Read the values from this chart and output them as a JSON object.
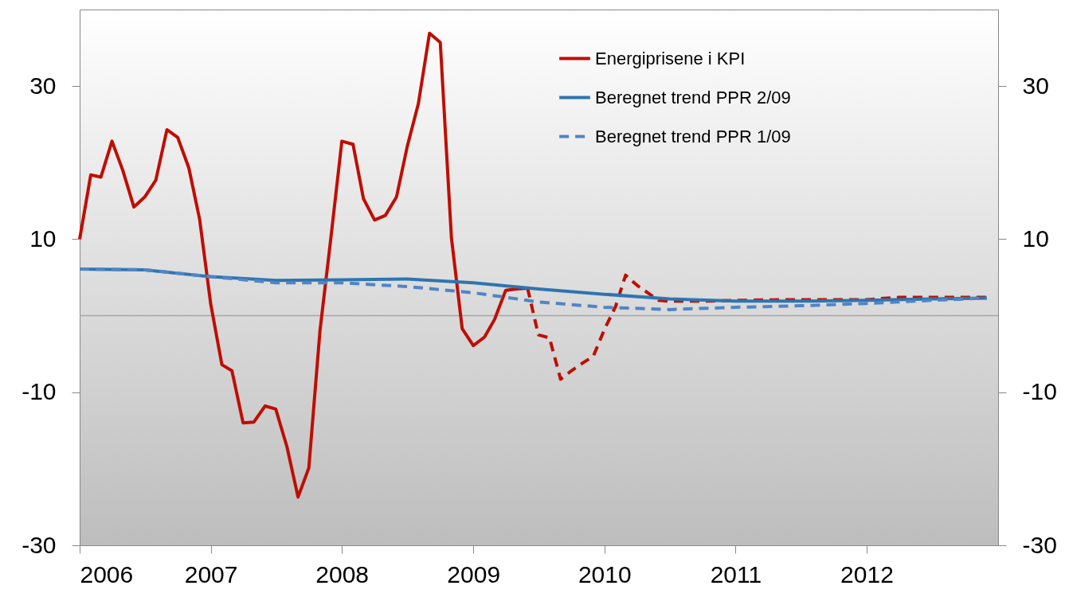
{
  "chart_data": {
    "type": "line",
    "xlim": [
      "2006",
      "2013"
    ],
    "xticks": [
      "2006",
      "2007",
      "2008",
      "2009",
      "2010",
      "2011",
      "2012"
    ],
    "ylim": [
      -30,
      40
    ],
    "yticks": [
      -30,
      -10,
      10,
      30
    ],
    "y2lim": [
      -30,
      40
    ],
    "y2ticks": [
      -30,
      -10,
      10,
      30
    ],
    "legend": "top right",
    "grid": false,
    "marker": "none",
    "ref_lines": [
      {
        "axis": "y",
        "value": 0,
        "color": "#a6a6a6"
      }
    ],
    "series": [
      {
        "name": "Energiprisene i KPI",
        "color": "#c00d00",
        "line_style": "solid",
        "x": [
          "2006-01",
          "2006-02",
          "2006-03",
          "2006-04",
          "2006-05",
          "2006-06",
          "2006-07",
          "2006-08",
          "2006-09",
          "2006-10",
          "2006-11",
          "2006-12",
          "2007-01",
          "2007-02",
          "2007-03",
          "2007-04",
          "2007-05",
          "2007-06",
          "2007-07",
          "2007-08",
          "2007-09",
          "2007-10",
          "2007-11",
          "2007-12",
          "2008-01",
          "2008-02",
          "2008-03",
          "2008-04",
          "2008-05",
          "2008-06",
          "2008-07",
          "2008-08",
          "2008-09",
          "2008-10",
          "2008-11",
          "2008-12",
          "2009-01",
          "2009-02",
          "2009-03",
          "2009-04",
          "2009-05",
          "2009-06"
        ],
        "values": [
          10.0,
          18.4,
          18.1,
          22.8,
          19.0,
          14.2,
          15.5,
          17.7,
          24.3,
          23.3,
          19.3,
          12.6,
          1.5,
          -6.4,
          -7.2,
          -14.0,
          -13.9,
          -11.8,
          -12.2,
          -17.1,
          -23.7,
          -19.9,
          -2.0,
          10.0,
          22.8,
          22.4,
          15.3,
          12.5,
          13.1,
          15.5,
          22.1,
          27.7,
          36.9,
          35.7,
          10.2,
          -1.7,
          -3.9,
          -2.8,
          -0.5,
          3.3,
          3.5,
          3.6
        ]
      },
      {
        "color": "#c00d00",
        "line_style": "dashed",
        "x": [
          "2009-06",
          "2009-07",
          "2009-08",
          "2009-09",
          "2009-10",
          "2009-11",
          "2009-12",
          "2010-01",
          "2010-02",
          "2010-03",
          "2010-04",
          "2010-05",
          "2010-06",
          "2010-07",
          "2010-10",
          "2011-01",
          "2011-06",
          "2012-01",
          "2012-04",
          "2012-12"
        ],
        "values": [
          3.6,
          -2.5,
          -2.9,
          -8.3,
          -7.2,
          -6.2,
          -5.3,
          -1.8,
          1.2,
          5.3,
          4.0,
          3.0,
          2.0,
          1.9,
          1.9,
          2.0,
          2.1,
          2.1,
          2.4,
          2.4
        ]
      },
      {
        "name": "Beregnet trend PPR 2/09",
        "color": "#2e75b0",
        "line_style": "solid",
        "x": [
          "2006-01",
          "2006-07",
          "2007-01",
          "2007-07",
          "2008-01",
          "2008-07",
          "2009-01",
          "2009-07",
          "2010-01",
          "2010-07",
          "2011-01",
          "2011-07",
          "2012-01",
          "2012-07",
          "2012-12"
        ],
        "values": [
          6.1,
          6.0,
          5.1,
          4.6,
          4.7,
          4.8,
          4.3,
          3.5,
          2.8,
          2.2,
          1.9,
          1.9,
          2.0,
          2.2,
          2.3
        ]
      },
      {
        "name": "Beregnet trend PPR 1/09",
        "color": "#5085c6",
        "line_style": "dashed",
        "x": [
          "2006-01",
          "2006-07",
          "2007-01",
          "2007-07",
          "2008-01",
          "2008-07",
          "2009-01",
          "2009-07",
          "2010-01",
          "2010-07",
          "2011-01",
          "2011-07",
          "2012-01",
          "2012-07",
          "2012-12"
        ],
        "values": [
          6.1,
          6.0,
          5.1,
          4.3,
          4.3,
          3.8,
          3.0,
          1.8,
          1.1,
          0.8,
          1.1,
          1.3,
          1.6,
          2.0,
          2.3
        ]
      }
    ]
  }
}
